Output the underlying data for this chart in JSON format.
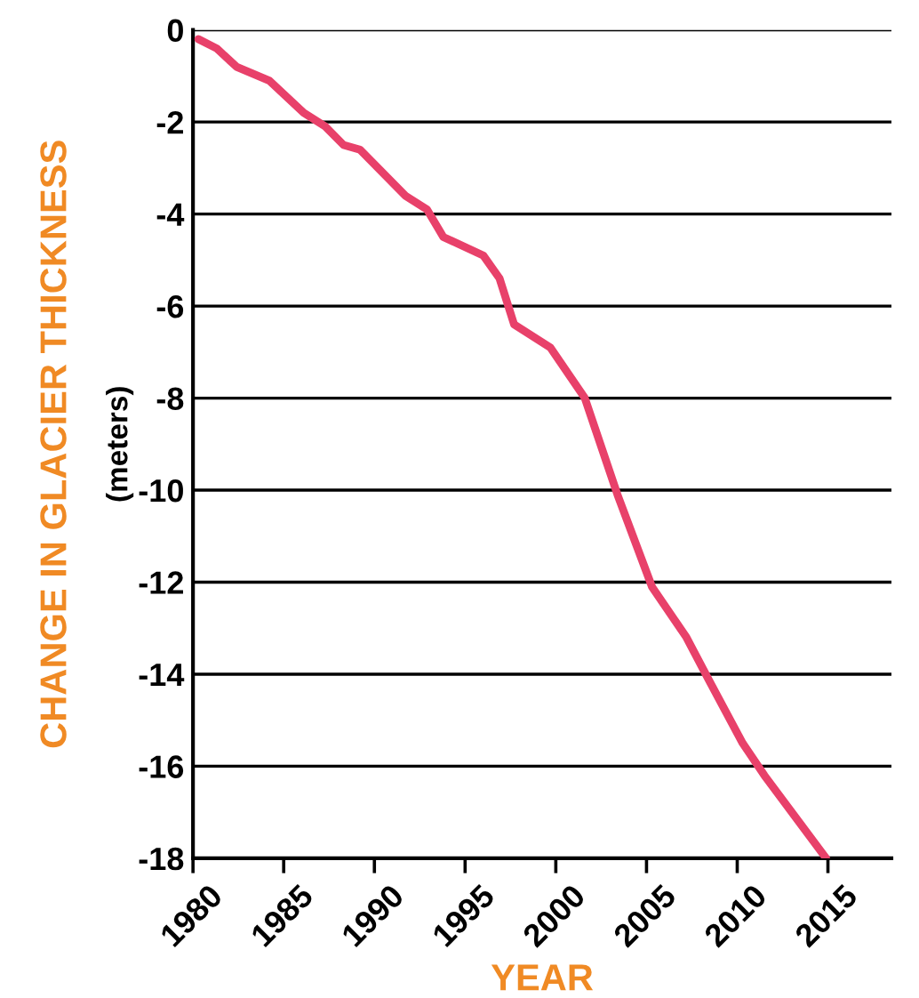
{
  "chart_data": {
    "type": "line",
    "xlabel": "YEAR",
    "ylabel": "CHANGE IN GLACIER THICKNESS",
    "annotations": [
      "(meters)"
    ],
    "x": [
      1980.3,
      1981.3,
      1982.4,
      1984.2,
      1986.1,
      1987.3,
      1988.3,
      1989.2,
      1991.7,
      1992.9,
      1993.8,
      1996.0,
      1996.9,
      1997.7,
      1999.7,
      2001.6,
      2003.4,
      2005.3,
      2007.2,
      2008.4,
      2010.3,
      2011.5,
      2014.9
    ],
    "series": [
      {
        "color": "#e8416a",
        "values": [
          -0.2,
          -0.4,
          -0.8,
          -1.1,
          -1.8,
          -2.1,
          -2.5,
          -2.6,
          -3.6,
          -3.9,
          -4.5,
          -4.9,
          -5.4,
          -6.4,
          -6.9,
          -8.0,
          -10.1,
          -12.1,
          -13.2,
          -14.1,
          -15.5,
          -16.2,
          -18.0
        ]
      }
    ],
    "xlim": [
      1980,
      2018.5
    ],
    "ylim": [
      -18,
      0
    ],
    "xticks": [
      1980,
      1985,
      1990,
      1995,
      2000,
      2005,
      2010,
      2015
    ],
    "yticks": [
      -18,
      -16,
      -14,
      -12,
      -10,
      -8,
      -6,
      -4,
      -2,
      0
    ],
    "grid": "y",
    "marker": "none",
    "line_style": "solid",
    "legend": false
  }
}
